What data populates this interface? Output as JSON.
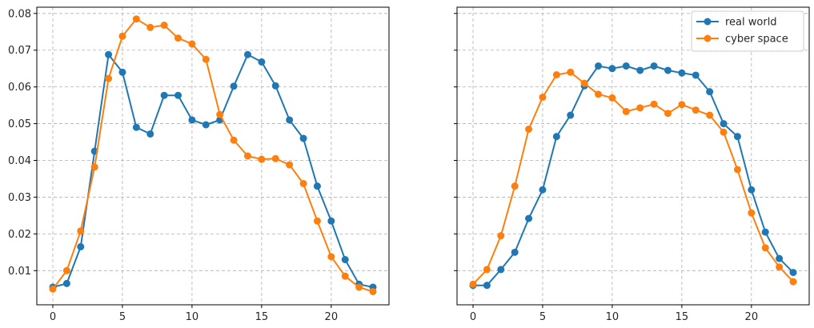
{
  "chart_data": [
    {
      "type": "line",
      "x": [
        0,
        1,
        2,
        3,
        4,
        5,
        6,
        7,
        8,
        9,
        10,
        11,
        12,
        13,
        14,
        15,
        16,
        17,
        18,
        19,
        20,
        21,
        22,
        23
      ],
      "xlim": [
        -1.15,
        24.15
      ],
      "ylim": [
        0.0007,
        0.0817
      ],
      "xticks": [
        0,
        5,
        10,
        15,
        20
      ],
      "yticks": [
        0.01,
        0.02,
        0.03,
        0.04,
        0.05,
        0.06,
        0.07,
        0.08
      ],
      "ytick_labels": [
        "0.01",
        "0.02",
        "0.03",
        "0.04",
        "0.05",
        "0.06",
        "0.07",
        "0.08"
      ],
      "grid": true,
      "legend": null,
      "series": [
        {
          "name": "real world",
          "color": "#1f77b4",
          "values": [
            0.0055,
            0.0065,
            0.0165,
            0.0425,
            0.0688,
            0.064,
            0.049,
            0.0472,
            0.0577,
            0.0577,
            0.051,
            0.0497,
            0.051,
            0.0602,
            0.0688,
            0.0668,
            0.0603,
            0.051,
            0.046,
            0.033,
            0.0235,
            0.013,
            0.0063,
            0.0055
          ]
        },
        {
          "name": "cyber space",
          "color": "#ff7f0e",
          "values": [
            0.005,
            0.01,
            0.0208,
            0.0382,
            0.0623,
            0.0738,
            0.0785,
            0.0762,
            0.0768,
            0.0733,
            0.0717,
            0.0675,
            0.0525,
            0.0455,
            0.0412,
            0.0403,
            0.0405,
            0.0388,
            0.0337,
            0.0235,
            0.0138,
            0.0085,
            0.0055,
            0.0043
          ]
        }
      ]
    },
    {
      "type": "line",
      "x": [
        0,
        1,
        2,
        3,
        4,
        5,
        6,
        7,
        8,
        9,
        10,
        11,
        12,
        13,
        14,
        15,
        16,
        17,
        18,
        19,
        20,
        21,
        22,
        23
      ],
      "xlim": [
        -1.15,
        24.15
      ],
      "ylim": [
        0.0007,
        0.0817
      ],
      "xticks": [
        0,
        5,
        10,
        15,
        20
      ],
      "yticks": [
        0.01,
        0.02,
        0.03,
        0.04,
        0.05,
        0.06,
        0.07,
        0.08
      ],
      "ytick_labels": [],
      "grid": true,
      "legend": "top-right",
      "series": [
        {
          "name": "real world",
          "color": "#1f77b4",
          "values": [
            0.006,
            0.006,
            0.0103,
            0.015,
            0.0242,
            0.032,
            0.0465,
            0.0523,
            0.0603,
            0.0657,
            0.065,
            0.0657,
            0.0645,
            0.0657,
            0.0645,
            0.0638,
            0.0632,
            0.0587,
            0.05,
            0.0465,
            0.032,
            0.0205,
            0.0133,
            0.0095
          ]
        },
        {
          "name": "cyber space",
          "color": "#ff7f0e",
          "values": [
            0.0063,
            0.0103,
            0.0195,
            0.033,
            0.0485,
            0.0572,
            0.0633,
            0.064,
            0.061,
            0.058,
            0.057,
            0.0533,
            0.0543,
            0.0553,
            0.0528,
            0.0552,
            0.0537,
            0.0523,
            0.0477,
            0.0375,
            0.0257,
            0.0162,
            0.011,
            0.007
          ]
        }
      ]
    }
  ]
}
